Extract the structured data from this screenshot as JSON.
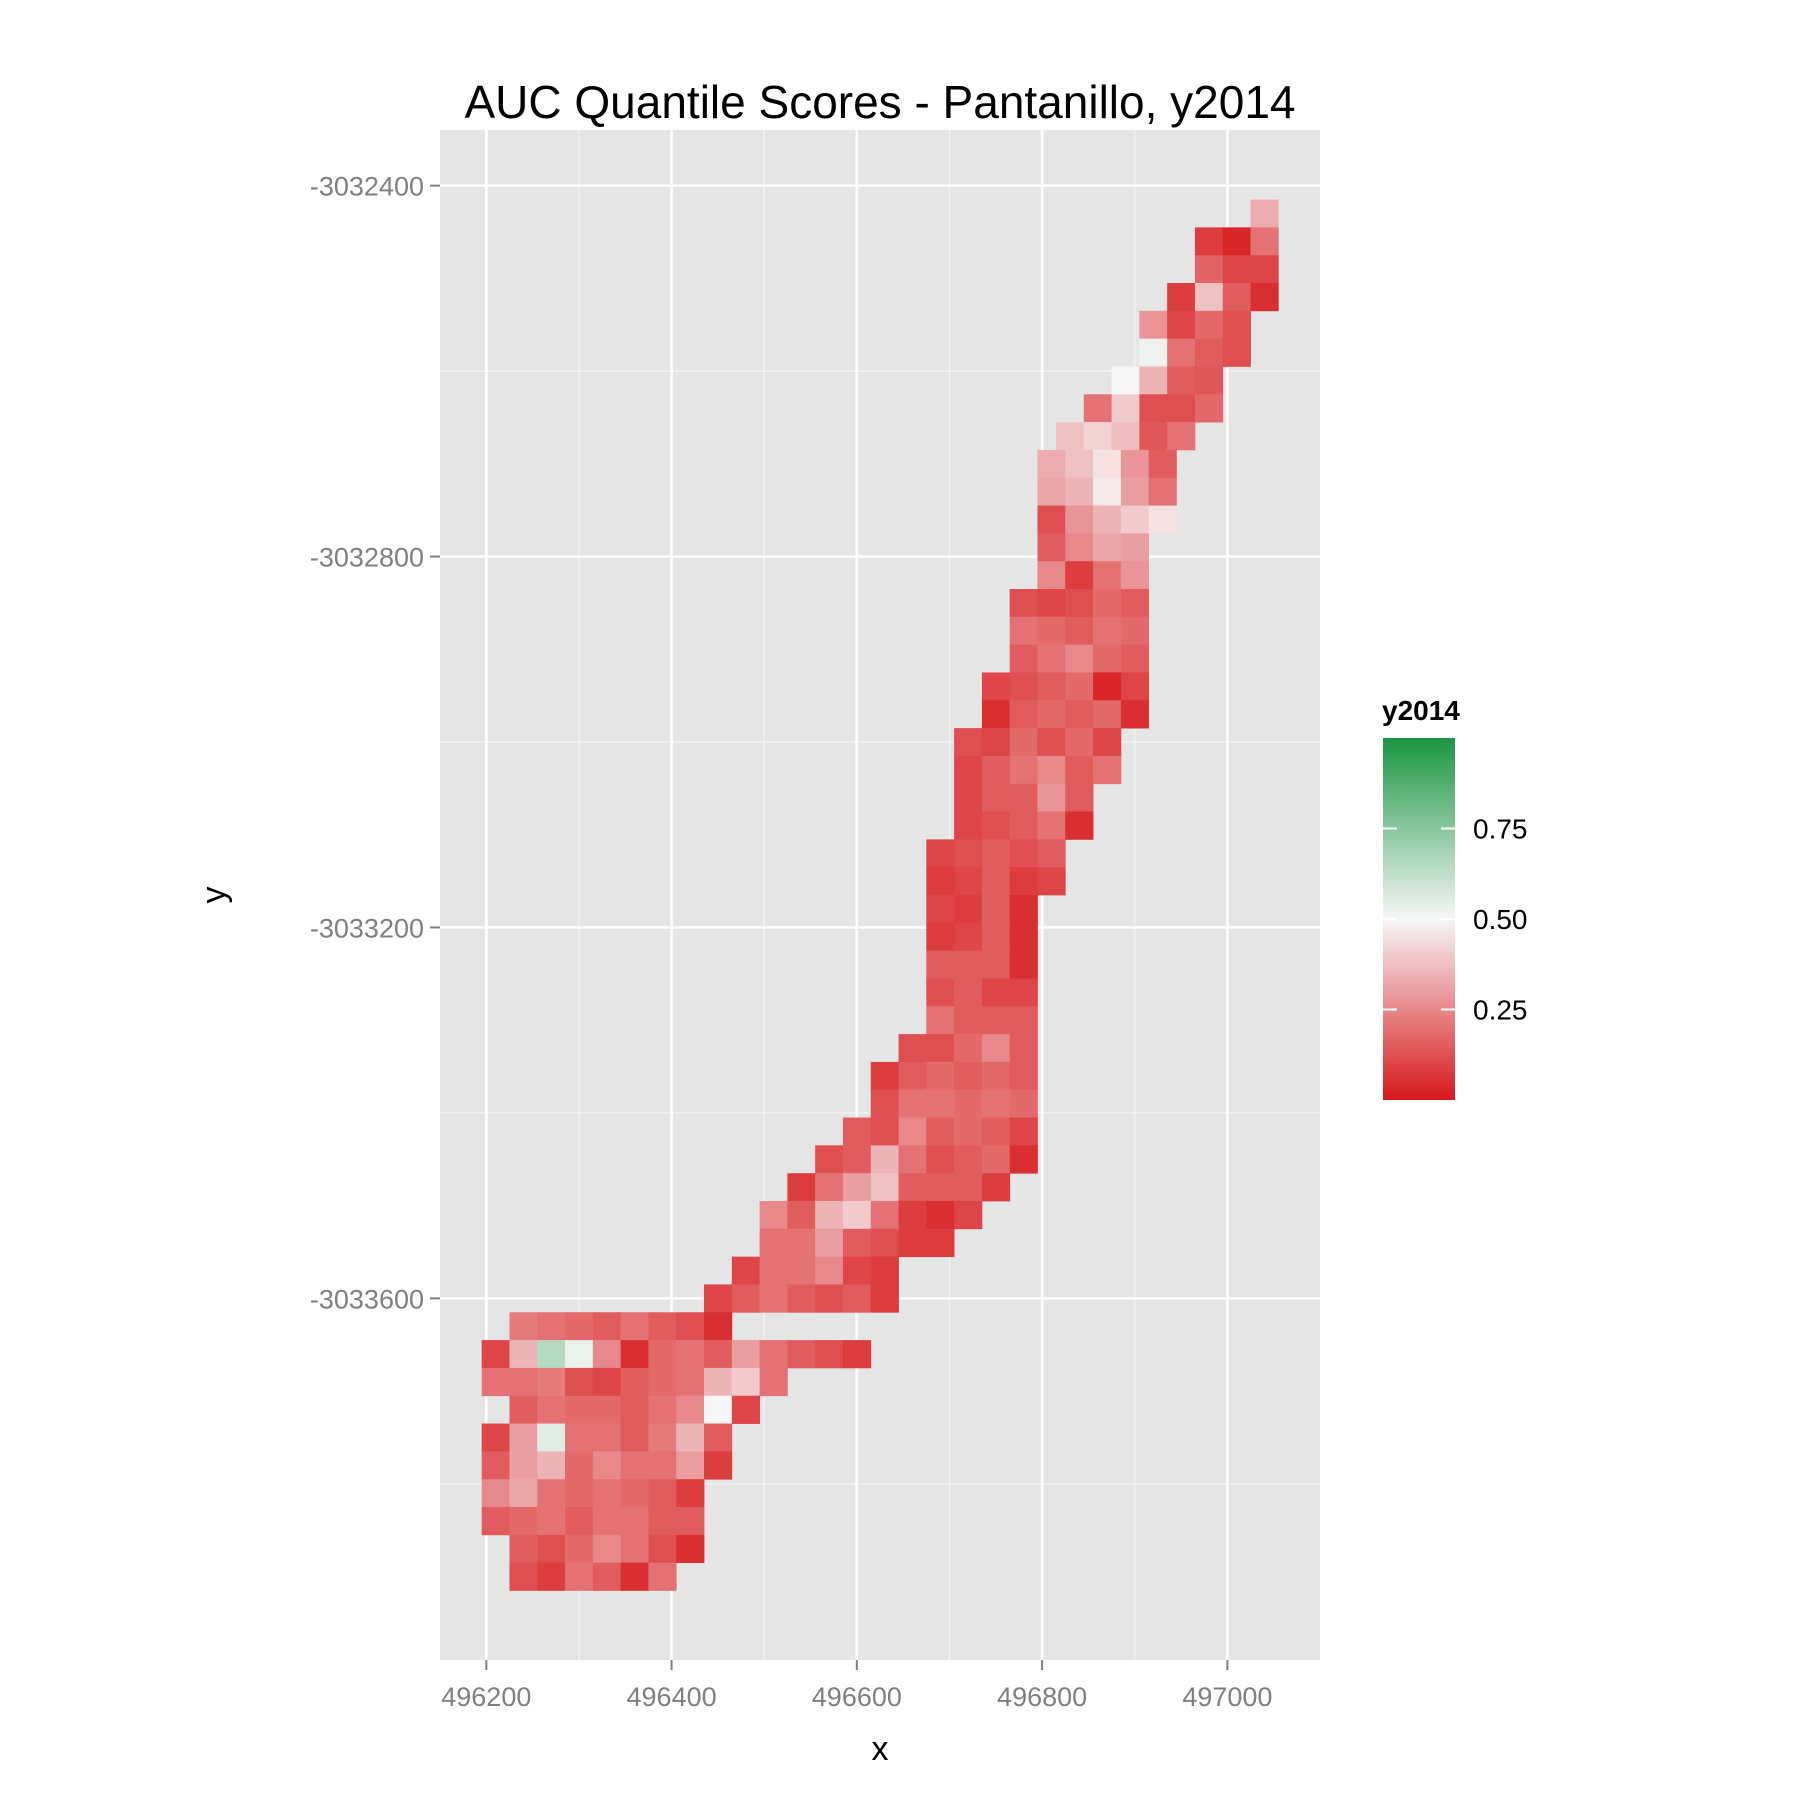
{
  "chart_data": {
    "type": "heatmap",
    "title": "AUC Quantile Scores - Pantanillo, y2014",
    "xlabel": "x",
    "ylabel": "y",
    "xlim": [
      496150,
      497100
    ],
    "ylim": [
      -3033990,
      -3032340
    ],
    "x_ticks": [
      496200,
      496400,
      496600,
      496800,
      497000
    ],
    "x_tick_labels": [
      "496200",
      "496400",
      "496600",
      "496800",
      "497000"
    ],
    "y_ticks": [
      -3032400,
      -3032800,
      -3033200,
      -3033600
    ],
    "y_tick_labels": [
      "-3032400",
      "-3032800",
      "-3033200",
      "-3033600"
    ],
    "grid": true,
    "legend": {
      "title": "y2014",
      "position": "right",
      "ticks": [
        0.25,
        0.5,
        0.75
      ],
      "tick_labels": [
        "0.25",
        "0.50",
        "0.75"
      ],
      "range": [
        0,
        1
      ]
    },
    "colors": {
      "low": "#d7191c",
      "mid": "#f7f7f7",
      "high": "#1a9641",
      "panel": "#e5e5e5",
      "grid": "#ffffff"
    },
    "cell_size": 30,
    "rows": [
      {
        "y": -3032430,
        "x0": 497040,
        "values": [
          0.33
        ]
      },
      {
        "y": -3032460,
        "x0": 496980,
        "values": [
          0.08,
          0.03,
          0.2
        ]
      },
      {
        "y": -3032490,
        "x0": 496980,
        "values": [
          0.17,
          0.1,
          0.1
        ]
      },
      {
        "y": -3032520,
        "x0": 496950,
        "values": [
          0.08,
          0.38,
          0.15,
          0.05
        ]
      },
      {
        "y": -3032550,
        "x0": 496920,
        "values": [
          0.28,
          0.1,
          0.18,
          0.12
        ]
      },
      {
        "y": -3032580,
        "x0": 496920,
        "values": [
          0.52,
          0.2,
          0.15,
          0.12
        ]
      },
      {
        "y": -3032610,
        "x0": 496890,
        "values": [
          0.5,
          0.35,
          0.15,
          0.14
        ]
      },
      {
        "y": -3032640,
        "x0": 496860,
        "values": [
          0.2,
          0.4,
          0.12,
          0.12,
          0.18
        ]
      },
      {
        "y": -3032670,
        "x0": 496830,
        "values": [
          0.38,
          0.42,
          0.37,
          0.14,
          0.2
        ]
      },
      {
        "y": -3032700,
        "x0": 496810,
        "values": [
          0.33,
          0.38,
          0.45,
          0.28,
          0.15
        ]
      },
      {
        "y": -3032730,
        "x0": 496810,
        "values": [
          0.32,
          0.35,
          0.47,
          0.3,
          0.2
        ]
      },
      {
        "y": -3032760,
        "x0": 496810,
        "values": [
          0.12,
          0.28,
          0.35,
          0.4,
          0.45
        ]
      },
      {
        "y": -3032790,
        "x0": 496810,
        "values": [
          0.15,
          0.25,
          0.32,
          0.3
        ]
      },
      {
        "y": -3032820,
        "x0": 496810,
        "values": [
          0.25,
          0.08,
          0.2,
          0.28
        ]
      },
      {
        "y": -3032850,
        "x0": 496780,
        "values": [
          0.12,
          0.1,
          0.12,
          0.18,
          0.15
        ]
      },
      {
        "y": -3032880,
        "x0": 496780,
        "values": [
          0.2,
          0.18,
          0.15,
          0.2,
          0.18
        ]
      },
      {
        "y": -3032910,
        "x0": 496780,
        "values": [
          0.15,
          0.2,
          0.25,
          0.18,
          0.15
        ]
      },
      {
        "y": -3032940,
        "x0": 496750,
        "values": [
          0.1,
          0.12,
          0.15,
          0.18,
          0.03,
          0.1
        ]
      },
      {
        "y": -3032970,
        "x0": 496750,
        "values": [
          0.05,
          0.15,
          0.18,
          0.15,
          0.18,
          0.05
        ]
      },
      {
        "y": -3033000,
        "x0": 496720,
        "values": [
          0.12,
          0.1,
          0.18,
          0.12,
          0.18,
          0.1
        ]
      },
      {
        "y": -3033030,
        "x0": 496720,
        "values": [
          0.1,
          0.15,
          0.2,
          0.25,
          0.15,
          0.2
        ]
      },
      {
        "y": -3033060,
        "x0": 496720,
        "values": [
          0.1,
          0.15,
          0.15,
          0.28,
          0.15
        ]
      },
      {
        "y": -3033090,
        "x0": 496720,
        "values": [
          0.1,
          0.12,
          0.15,
          0.2,
          0.05
        ]
      },
      {
        "y": -3033120,
        "x0": 496690,
        "values": [
          0.1,
          0.12,
          0.15,
          0.12,
          0.15
        ]
      },
      {
        "y": -3033150,
        "x0": 496690,
        "values": [
          0.08,
          0.1,
          0.15,
          0.08,
          0.1
        ]
      },
      {
        "y": -3033180,
        "x0": 496690,
        "values": [
          0.1,
          0.08,
          0.15,
          0.05
        ]
      },
      {
        "y": -3033210,
        "x0": 496690,
        "values": [
          0.08,
          0.1,
          0.15,
          0.05
        ]
      },
      {
        "y": -3033240,
        "x0": 496690,
        "values": [
          0.15,
          0.15,
          0.15,
          0.05
        ]
      },
      {
        "y": -3033270,
        "x0": 496690,
        "values": [
          0.12,
          0.15,
          0.1,
          0.1
        ]
      },
      {
        "y": -3033300,
        "x0": 496690,
        "values": [
          0.2,
          0.15,
          0.15,
          0.15
        ]
      },
      {
        "y": -3033330,
        "x0": 496660,
        "values": [
          0.12,
          0.12,
          0.18,
          0.25,
          0.15
        ]
      },
      {
        "y": -3033360,
        "x0": 496630,
        "values": [
          0.08,
          0.15,
          0.18,
          0.15,
          0.18,
          0.15
        ]
      },
      {
        "y": -3033390,
        "x0": 496630,
        "values": [
          0.12,
          0.2,
          0.2,
          0.18,
          0.2,
          0.18
        ]
      },
      {
        "y": -3033420,
        "x0": 496600,
        "values": [
          0.15,
          0.12,
          0.25,
          0.15,
          0.18,
          0.15,
          0.1
        ]
      },
      {
        "y": -3033450,
        "x0": 496570,
        "values": [
          0.12,
          0.15,
          0.35,
          0.2,
          0.12,
          0.15,
          0.18,
          0.05
        ]
      },
      {
        "y": -3033480,
        "x0": 496540,
        "values": [
          0.08,
          0.2,
          0.3,
          0.38,
          0.15,
          0.15,
          0.15,
          0.08
        ]
      },
      {
        "y": -3033510,
        "x0": 496510,
        "values": [
          0.25,
          0.15,
          0.35,
          0.4,
          0.2,
          0.08,
          0.05,
          0.1
        ]
      },
      {
        "y": -3033540,
        "x0": 496510,
        "values": [
          0.2,
          0.2,
          0.3,
          0.15,
          0.12,
          0.08,
          0.08
        ]
      },
      {
        "y": -3033570,
        "x0": 496480,
        "values": [
          0.1,
          0.2,
          0.2,
          0.25,
          0.1,
          0.08
        ]
      },
      {
        "y": -3033600,
        "x0": 496450,
        "values": [
          0.1,
          0.15,
          0.2,
          0.15,
          0.12,
          0.15,
          0.08
        ]
      },
      {
        "y": -3033630,
        "x0": 496240,
        "values": [
          0.22,
          0.2,
          0.18,
          0.15,
          0.2,
          0.15,
          0.12,
          0.05
        ]
      },
      {
        "y": -3033660,
        "x0": 496210,
        "values": [
          0.1,
          0.35,
          0.65,
          0.53,
          0.25,
          0.05,
          0.18,
          0.2,
          0.15,
          0.3,
          0.2,
          0.15,
          0.12,
          0.08
        ]
      },
      {
        "y": -3033690,
        "x0": 496210,
        "values": [
          0.2,
          0.2,
          0.22,
          0.12,
          0.1,
          0.15,
          0.18,
          0.2,
          0.35,
          0.4,
          0.2
        ]
      },
      {
        "y": -3033720,
        "x0": 496240,
        "values": [
          0.15,
          0.2,
          0.18,
          0.18,
          0.15,
          0.2,
          0.25,
          0.5,
          0.1
        ]
      },
      {
        "y": -3033750,
        "x0": 496210,
        "values": [
          0.1,
          0.3,
          0.55,
          0.2,
          0.2,
          0.15,
          0.22,
          0.35,
          0.15
        ]
      },
      {
        "y": -3033780,
        "x0": 496210,
        "values": [
          0.15,
          0.3,
          0.35,
          0.18,
          0.25,
          0.2,
          0.2,
          0.3,
          0.08
        ]
      },
      {
        "y": -3033810,
        "x0": 496210,
        "values": [
          0.25,
          0.32,
          0.2,
          0.18,
          0.2,
          0.18,
          0.15,
          0.08
        ]
      },
      {
        "y": -3033840,
        "x0": 496210,
        "values": [
          0.15,
          0.18,
          0.2,
          0.15,
          0.2,
          0.2,
          0.15,
          0.15
        ]
      },
      {
        "y": -3033870,
        "x0": 496240,
        "values": [
          0.15,
          0.12,
          0.18,
          0.25,
          0.2,
          0.12,
          0.05
        ]
      },
      {
        "y": -3033900,
        "x0": 496240,
        "values": [
          0.12,
          0.08,
          0.2,
          0.15,
          0.05,
          0.2
        ]
      }
    ]
  }
}
